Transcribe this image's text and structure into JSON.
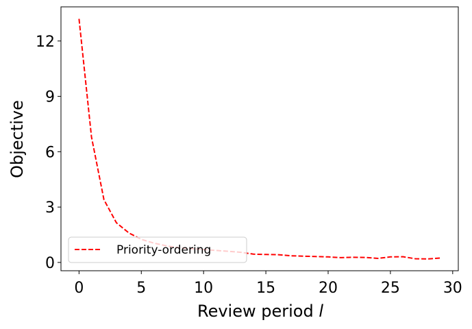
{
  "chart_data": {
    "type": "line",
    "x_label": "Review period",
    "x_label_var": "l",
    "y_label": "Objective",
    "x": [
      0,
      1,
      2,
      3,
      4,
      5,
      6,
      7,
      8,
      9,
      10,
      11,
      12,
      13,
      14,
      15,
      16,
      17,
      18,
      19,
      20,
      21,
      22,
      23,
      24,
      25,
      26,
      27,
      28,
      29
    ],
    "series": [
      {
        "name": "Priority-ordering",
        "color": "#ff0000",
        "values": [
          13.2,
          6.8,
          3.4,
          2.15,
          1.6,
          1.25,
          1.05,
          0.9,
          0.8,
          0.75,
          0.7,
          0.65,
          0.6,
          0.55,
          0.45,
          0.43,
          0.42,
          0.36,
          0.34,
          0.32,
          0.3,
          0.26,
          0.28,
          0.27,
          0.22,
          0.3,
          0.31,
          0.2,
          0.19,
          0.24
        ]
      }
    ],
    "xlim": [
      -1.45,
      30.45
    ],
    "xticks": [
      0,
      5,
      10,
      15,
      20,
      25,
      30
    ],
    "ylim": [
      -0.45,
      13.85
    ],
    "yticks": [
      0,
      3,
      6,
      9,
      12
    ],
    "legend_position": "lower left",
    "grid": false
  }
}
